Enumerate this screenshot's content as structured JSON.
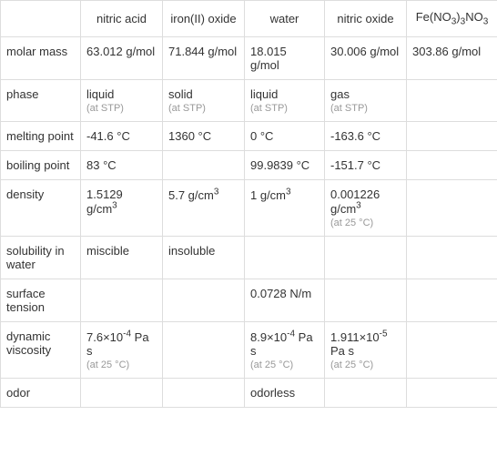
{
  "headers": {
    "empty": "",
    "col1": "nitric acid",
    "col2": "iron(II) oxide",
    "col3": "water",
    "col4": "nitric oxide",
    "col5_html": "Fe(NO<sub>3</sub>)<sub>3</sub>NO<sub>3</sub>"
  },
  "rows": [
    {
      "label": "molar mass",
      "cells": [
        {
          "main": "63.012 g/mol"
        },
        {
          "main": "71.844 g/mol"
        },
        {
          "main": "18.015 g/mol"
        },
        {
          "main": "30.006 g/mol"
        },
        {
          "main": "303.86 g/mol"
        }
      ]
    },
    {
      "label": "phase",
      "cells": [
        {
          "main": "liquid",
          "sub": "(at STP)"
        },
        {
          "main": "solid",
          "sub": "(at STP)"
        },
        {
          "main": "liquid",
          "sub": "(at STP)"
        },
        {
          "main": "gas",
          "sub": "(at STP)"
        },
        {
          "main": ""
        }
      ]
    },
    {
      "label": "melting point",
      "cells": [
        {
          "main": "-41.6 °C"
        },
        {
          "main": "1360 °C"
        },
        {
          "main": "0 °C"
        },
        {
          "main": "-163.6 °C"
        },
        {
          "main": ""
        }
      ]
    },
    {
      "label": "boiling point",
      "cells": [
        {
          "main": "83 °C"
        },
        {
          "main": ""
        },
        {
          "main": "99.9839 °C"
        },
        {
          "main": "-151.7 °C"
        },
        {
          "main": ""
        }
      ]
    },
    {
      "label": "density",
      "cells": [
        {
          "main_html": "1.5129 g/cm<sup>3</sup>"
        },
        {
          "main_html": "5.7 g/cm<sup>3</sup>"
        },
        {
          "main_html": "1 g/cm<sup>3</sup>"
        },
        {
          "main_html": "0.001226 g/cm<sup>3</sup>",
          "sub": "(at 25 °C)"
        },
        {
          "main": ""
        }
      ]
    },
    {
      "label": "solubility in water",
      "cells": [
        {
          "main": "miscible"
        },
        {
          "main": "insoluble"
        },
        {
          "main": ""
        },
        {
          "main": ""
        },
        {
          "main": ""
        }
      ]
    },
    {
      "label": "surface tension",
      "cells": [
        {
          "main": ""
        },
        {
          "main": ""
        },
        {
          "main": "0.0728 N/m"
        },
        {
          "main": ""
        },
        {
          "main": ""
        }
      ]
    },
    {
      "label": "dynamic viscosity",
      "cells": [
        {
          "main_html": "7.6×10<sup>-4</sup> Pa s",
          "sub": "(at 25 °C)"
        },
        {
          "main": ""
        },
        {
          "main_html": "8.9×10<sup>-4</sup> Pa s",
          "sub": "(at 25 °C)"
        },
        {
          "main_html": "1.911×10<sup>-5</sup> Pa s",
          "sub": "(at 25 °C)"
        },
        {
          "main": ""
        }
      ]
    },
    {
      "label": "odor",
      "cells": [
        {
          "main": ""
        },
        {
          "main": ""
        },
        {
          "main": "odorless"
        },
        {
          "main": ""
        },
        {
          "main": ""
        }
      ]
    }
  ]
}
